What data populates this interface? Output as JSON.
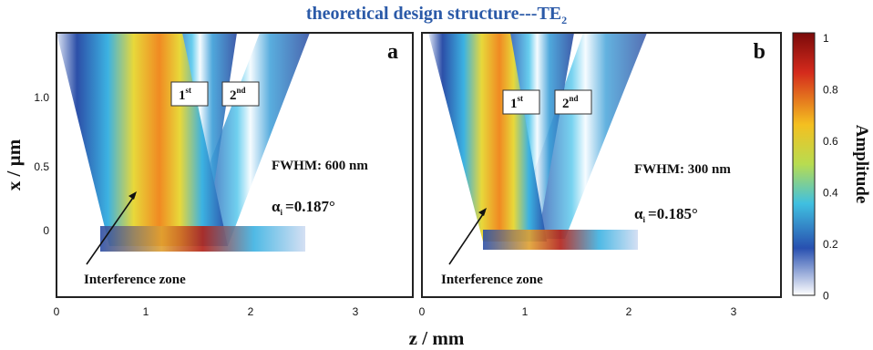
{
  "title": "theoretical design structure---TE",
  "title_subscript": "2",
  "x_axis_label": "z / mm",
  "y_axis_label": "x / µm",
  "x_ticks": [
    "0",
    "1",
    "2",
    "3"
  ],
  "y_ticks": [
    "1.0",
    "0.5",
    "0"
  ],
  "panels": [
    {
      "letter": "a",
      "order_labels": [
        {
          "base": "1",
          "sup": "st"
        },
        {
          "base": "2",
          "sup": "nd"
        }
      ],
      "fwhm": "FWHM: 600 nm",
      "angle": {
        "symbol": "α",
        "sub": "i",
        "value": "=0.187°"
      },
      "annotation": "Interference zone"
    },
    {
      "letter": "b",
      "order_labels": [
        {
          "base": "1",
          "sup": "st"
        },
        {
          "base": "2",
          "sup": "nd"
        }
      ],
      "fwhm": "FWHM: 300 nm",
      "angle": {
        "symbol": "α",
        "sub": "i",
        "value": "=0.185°"
      },
      "annotation": "Interference zone"
    }
  ],
  "colorbar": {
    "label": "Amplitude",
    "ticks": [
      "1",
      "0.8",
      "0.6",
      "0.4",
      "0.2",
      "0"
    ]
  }
}
